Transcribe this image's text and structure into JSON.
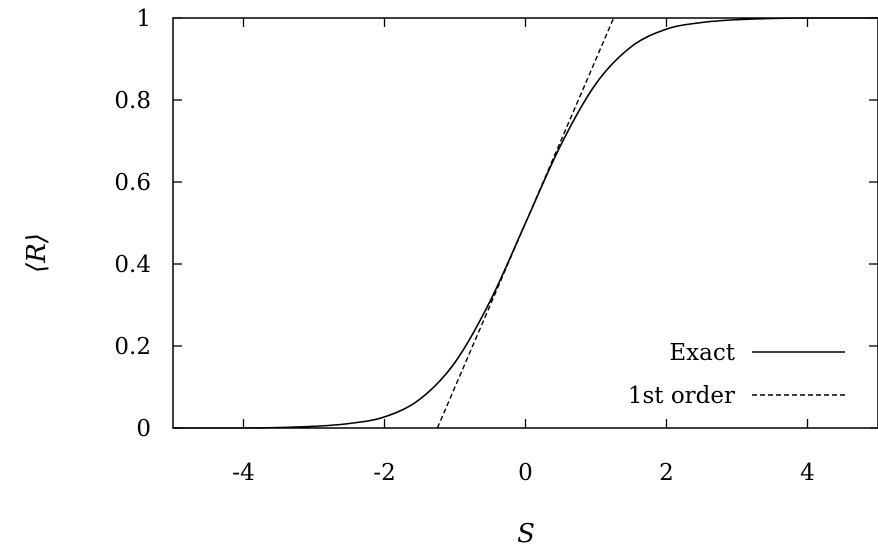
{
  "chart_data": {
    "type": "line",
    "xlabel": "S",
    "ylabel": "⟨R⟩",
    "xlim": [
      -5,
      5
    ],
    "ylim": [
      0,
      1
    ],
    "x_ticks": [
      -4,
      -2,
      0,
      2,
      4
    ],
    "x_tick_labels": [
      "-4",
      "-2",
      "0",
      "2",
      "4"
    ],
    "y_ticks": [
      0,
      0.2,
      0.4,
      0.6,
      0.8,
      1
    ],
    "y_tick_labels": [
      "0",
      "0.2",
      "0.4",
      "0.6",
      "0.8",
      "1"
    ],
    "grid": false,
    "legend_position": "bottom-right",
    "series": [
      {
        "name": "Exact",
        "style": "solid",
        "color": "#000000",
        "x": [
          -5,
          -4,
          -3.5,
          -3,
          -2.5,
          -2,
          -1.5,
          -1,
          -0.5,
          0,
          0.5,
          1,
          1.5,
          2,
          2.5,
          3,
          3.5,
          4,
          5
        ],
        "y": [
          0,
          0,
          0.001,
          0.004,
          0.011,
          0.027,
          0.07,
          0.16,
          0.31,
          0.5,
          0.69,
          0.84,
          0.93,
          0.973,
          0.989,
          0.996,
          0.999,
          1,
          1
        ]
      },
      {
        "name": "1st order",
        "style": "dashed",
        "color": "#000000",
        "x": [
          -1.25,
          1.25
        ],
        "y": [
          0,
          1
        ]
      }
    ]
  }
}
